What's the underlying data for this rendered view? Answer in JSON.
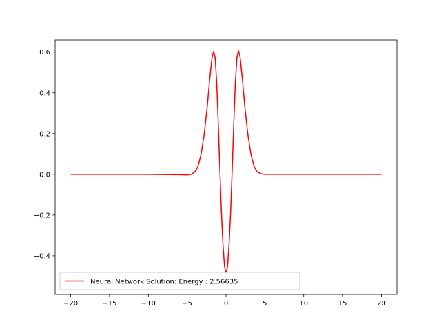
{
  "chart_data": {
    "type": "line",
    "title": "",
    "xlabel": "",
    "ylabel": "",
    "xlim": [
      -22.0,
      22.0
    ],
    "ylim": [
      -0.59,
      0.66
    ],
    "grid": false,
    "legend_placement": "lower-left",
    "x_ticks": [
      {
        "value": -20,
        "label": "−20"
      },
      {
        "value": -15,
        "label": "−15"
      },
      {
        "value": -10,
        "label": "−10"
      },
      {
        "value": -5,
        "label": "−5"
      },
      {
        "value": 0,
        "label": "0"
      },
      {
        "value": 5,
        "label": "5"
      },
      {
        "value": 10,
        "label": "10"
      },
      {
        "value": 15,
        "label": "15"
      },
      {
        "value": 20,
        "label": "20"
      }
    ],
    "y_ticks": [
      {
        "value": -0.4,
        "label": "−0.4"
      },
      {
        "value": -0.2,
        "label": "−0.2"
      },
      {
        "value": 0.0,
        "label": "0.0"
      },
      {
        "value": 0.2,
        "label": "0.2"
      },
      {
        "value": 0.4,
        "label": "0.4"
      },
      {
        "value": 0.6,
        "label": "0.6"
      }
    ],
    "series": [
      {
        "name": "Neural Network Solution: Energy : 2.56635",
        "color": "#ff0000",
        "x": [
          -20,
          -10,
          -6,
          -5,
          -4.5,
          -4,
          -3.6,
          -3.2,
          -2.8,
          -2.4,
          -2.1,
          -1.8,
          -1.6,
          -1.4,
          -1.2,
          -1.0,
          -0.8,
          -0.6,
          -0.4,
          -0.2,
          0.0,
          0.2,
          0.4,
          0.6,
          0.8,
          1.0,
          1.2,
          1.4,
          1.6,
          1.8,
          2.1,
          2.4,
          2.8,
          3.2,
          3.6,
          4.0,
          4.5,
          5.0,
          6.0,
          10,
          20
        ],
        "y": [
          0.0,
          0.0,
          -0.002,
          -0.003,
          0.0,
          0.012,
          0.04,
          0.1,
          0.2,
          0.34,
          0.47,
          0.575,
          0.603,
          0.575,
          0.45,
          0.25,
          0.03,
          -0.18,
          -0.34,
          -0.45,
          -0.49,
          -0.45,
          -0.34,
          -0.18,
          0.03,
          0.25,
          0.45,
          0.575,
          0.607,
          0.58,
          0.47,
          0.34,
          0.2,
          0.1,
          0.04,
          0.012,
          0.003,
          0.0,
          0.0,
          0.0,
          0.0
        ]
      }
    ]
  }
}
